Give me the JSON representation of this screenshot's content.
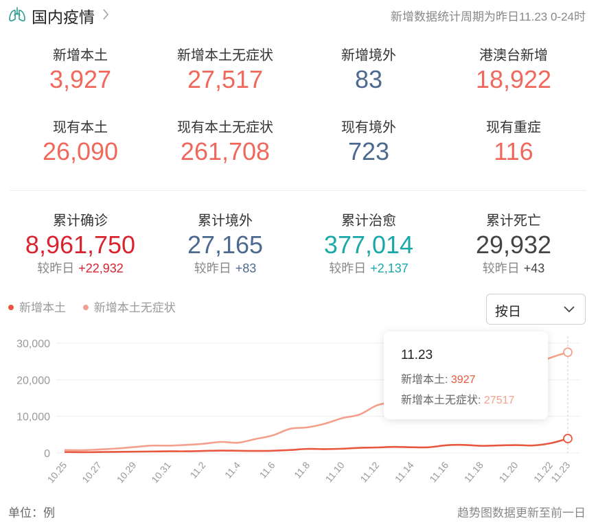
{
  "header": {
    "title": "国内疫情",
    "period": "新增数据统计周期为昨日11.23 0-24时",
    "icon": "lung-icon"
  },
  "stats_row1": [
    {
      "label": "新增本土",
      "value": "3,927",
      "color": "#f0685b"
    },
    {
      "label": "新增本土无症状",
      "value": "27,517",
      "color": "#f0685b"
    },
    {
      "label": "新增境外",
      "value": "83",
      "color": "#4c6a8f"
    },
    {
      "label": "港澳台新增",
      "value": "18,922",
      "color": "#f0685b"
    }
  ],
  "stats_row2": [
    {
      "label": "现有本土",
      "value": "26,090",
      "color": "#f0685b"
    },
    {
      "label": "现有本土无症状",
      "value": "261,708",
      "color": "#f0685b"
    },
    {
      "label": "现有境外",
      "value": "723",
      "color": "#4c6a8f"
    },
    {
      "label": "现有重症",
      "value": "116",
      "color": "#f0685b"
    }
  ],
  "stats_cumulative": [
    {
      "label": "累计确诊",
      "value": "8,961,750",
      "delta_label": "较昨日",
      "delta": "+22,932",
      "color": "#d9232f"
    },
    {
      "label": "累计境外",
      "value": "27,165",
      "delta_label": "较昨日",
      "delta": "+83",
      "color": "#4c6a8f"
    },
    {
      "label": "累计治愈",
      "value": "377,014",
      "delta_label": "较昨日",
      "delta": "+2,137",
      "color": "#1aa8a8"
    },
    {
      "label": "累计死亡",
      "value": "29,932",
      "delta_label": "较昨日",
      "delta": "+43",
      "color": "#444444"
    }
  ],
  "legend": {
    "items": [
      {
        "label": "新增本土",
        "color": "#e8573e"
      },
      {
        "label": "新增本土无症状",
        "color": "#f4a08c"
      }
    ]
  },
  "select": {
    "value": "按日"
  },
  "tooltip": {
    "date": "11.23",
    "row1_label": "新增本土:",
    "row1_value": "3927",
    "row2_label": "新增本土无症状:",
    "row2_value": "27517"
  },
  "footer": {
    "unit": "单位：例",
    "note": "趋势图数据更新至前一日"
  },
  "chart_data": {
    "type": "line",
    "title": "",
    "xlabel": "",
    "ylabel": "",
    "ylim": [
      0,
      30000
    ],
    "yticks": [
      "0",
      "10,000",
      "20,000",
      "30,000"
    ],
    "ytick_values": [
      0,
      10000,
      20000,
      30000
    ],
    "x": [
      "10.25",
      "10.26",
      "10.27",
      "10.28",
      "10.29",
      "10.30",
      "10.31",
      "11.1",
      "11.2",
      "11.3",
      "11.4",
      "11.5",
      "11.6",
      "11.7",
      "11.8",
      "11.9",
      "11.10",
      "11.11",
      "11.12",
      "11.13",
      "11.14",
      "11.15",
      "11.16",
      "11.17",
      "11.18",
      "11.19",
      "11.20",
      "11.21",
      "11.22",
      "11.23"
    ],
    "xtick_labels": [
      "10.25",
      "10.27",
      "10.29",
      "10.31",
      "11.2",
      "11.4",
      "11.6",
      "11.8",
      "11.10",
      "11.12",
      "11.14",
      "11.16",
      "11.18",
      "11.20",
      "11.22",
      "11.23"
    ],
    "grid": true,
    "series": [
      {
        "name": "新增本土",
        "color": "#e8573e",
        "values": [
          250,
          200,
          250,
          300,
          350,
          400,
          450,
          450,
          550,
          650,
          600,
          550,
          600,
          800,
          1100,
          1050,
          1150,
          1400,
          1500,
          1650,
          1550,
          1550,
          2100,
          2200,
          1950,
          2050,
          2150,
          2050,
          2650,
          3927
        ]
      },
      {
        "name": "新增本土无症状",
        "color": "#f4a08c",
        "values": [
          800,
          750,
          950,
          1200,
          1600,
          2000,
          2000,
          2200,
          2500,
          3000,
          2800,
          3800,
          4800,
          6600,
          7000,
          8000,
          9500,
          10500,
          13000,
          14000,
          15000,
          16000,
          17500,
          19000,
          20000,
          21000,
          22000,
          24000,
          26000,
          27517
        ]
      }
    ]
  }
}
